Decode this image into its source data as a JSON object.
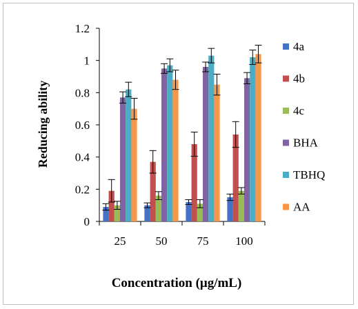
{
  "chart_data": {
    "type": "bar",
    "title": "",
    "xlabel": "Concentration (μg/mL)",
    "ylabel": "Reducing ability",
    "ylim": [
      0,
      1.2
    ],
    "yticks": [
      "0",
      "0.2",
      "0.4",
      "0.6",
      "0.8",
      "1",
      "1.2"
    ],
    "categories": [
      "25",
      "50",
      "75",
      "100"
    ],
    "grid": false,
    "legend_position": "right",
    "series": [
      {
        "name": "4a",
        "color": "#4472C4",
        "values": [
          0.09,
          0.1,
          0.12,
          0.15
        ],
        "errors": [
          0.02,
          0.015,
          0.015,
          0.02
        ]
      },
      {
        "name": "4b",
        "color": "#C0504D",
        "values": [
          0.19,
          0.37,
          0.48,
          0.54
        ],
        "errors": [
          0.07,
          0.07,
          0.075,
          0.08
        ]
      },
      {
        "name": "4c",
        "color": "#9BBB59",
        "values": [
          0.1,
          0.16,
          0.11,
          0.19
        ],
        "errors": [
          0.025,
          0.025,
          0.025,
          0.02
        ]
      },
      {
        "name": "BHA",
        "color": "#8064A2",
        "values": [
          0.77,
          0.95,
          0.96,
          0.89
        ],
        "errors": [
          0.035,
          0.03,
          0.03,
          0.035
        ]
      },
      {
        "name": "TBHQ",
        "color": "#4BACC6",
        "values": [
          0.82,
          0.97,
          1.03,
          1.02
        ],
        "errors": [
          0.045,
          0.04,
          0.045,
          0.045
        ]
      },
      {
        "name": "AA",
        "color": "#F79646",
        "values": [
          0.7,
          0.88,
          0.85,
          1.04
        ],
        "errors": [
          0.065,
          0.06,
          0.065,
          0.055
        ]
      }
    ]
  }
}
